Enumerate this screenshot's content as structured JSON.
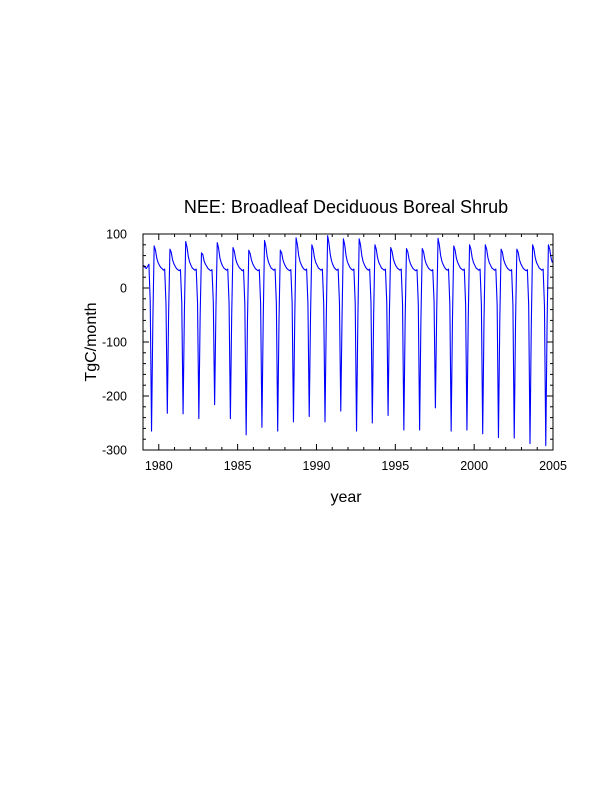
{
  "chart_data": {
    "type": "line",
    "title": "NEE: Broadleaf Deciduous Boreal Shrub",
    "xlabel": "year",
    "ylabel": "TgC/month",
    "xlim": [
      1979,
      2005
    ],
    "ylim": [
      -300,
      100
    ],
    "x_ticks": [
      1980,
      1985,
      1990,
      1995,
      2000,
      2005
    ],
    "y_ticks": [
      -300,
      -200,
      -100,
      0,
      100
    ],
    "grid": false,
    "legend": "none",
    "line_color": "#0000ff",
    "series": [
      {
        "x_start": "1979-01",
        "x_step": "1 month",
        "values": [
          42,
          38,
          36,
          40,
          44,
          -25,
          -265,
          -60,
          78,
          70,
          55,
          47,
          42,
          38,
          36,
          33,
          35,
          -30,
          -232,
          -45,
          72,
          66,
          52,
          45,
          40,
          36,
          34,
          32,
          34,
          -28,
          -233,
          -45,
          86,
          76,
          58,
          48,
          42,
          37,
          35,
          33,
          35,
          -28,
          -242,
          -50,
          65,
          62,
          50,
          44,
          40,
          36,
          34,
          32,
          34,
          -26,
          -216,
          -40,
          84,
          74,
          56,
          47,
          41,
          37,
          35,
          33,
          35,
          -28,
          -242,
          -50,
          75,
          68,
          54,
          46,
          41,
          37,
          35,
          32,
          34,
          -30,
          -272,
          -60,
          70,
          64,
          52,
          45,
          40,
          36,
          34,
          32,
          34,
          -28,
          -258,
          -55,
          88,
          77,
          58,
          48,
          42,
          37,
          35,
          33,
          35,
          -30,
          -265,
          -58,
          70,
          65,
          52,
          45,
          40,
          36,
          34,
          32,
          34,
          -28,
          -248,
          -52,
          93,
          80,
          60,
          49,
          43,
          38,
          35,
          33,
          35,
          -28,
          -238,
          -50,
          80,
          72,
          56,
          47,
          42,
          37,
          35,
          33,
          35,
          -28,
          -248,
          -52,
          97,
          83,
          62,
          50,
          43,
          38,
          35,
          33,
          35,
          -27,
          -228,
          -48,
          91,
          80,
          60,
          49,
          43,
          38,
          35,
          33,
          35,
          -30,
          -265,
          -58,
          91,
          80,
          60,
          49,
          43,
          38,
          35,
          33,
          35,
          -28,
          -250,
          -52,
          80,
          72,
          56,
          47,
          42,
          37,
          35,
          33,
          35,
          -27,
          -236,
          -48,
          75,
          68,
          54,
          46,
          41,
          37,
          35,
          33,
          35,
          -30,
          -263,
          -57,
          73,
          67,
          53,
          45,
          40,
          36,
          34,
          32,
          34,
          -30,
          -263,
          -57,
          73,
          67,
          53,
          45,
          40,
          36,
          34,
          32,
          34,
          -25,
          -222,
          -45,
          92,
          80,
          60,
          49,
          43,
          38,
          35,
          33,
          35,
          -30,
          -265,
          -58,
          78,
          70,
          55,
          47,
          42,
          37,
          35,
          33,
          35,
          -30,
          -263,
          -57,
          80,
          72,
          56,
          47,
          42,
          37,
          35,
          33,
          35,
          -30,
          -270,
          -60,
          80,
          72,
          56,
          47,
          42,
          37,
          35,
          33,
          35,
          -31,
          -277,
          -62,
          72,
          66,
          52,
          45,
          40,
          36,
          34,
          32,
          34,
          -31,
          -278,
          -62,
          72,
          66,
          52,
          45,
          40,
          36,
          34,
          32,
          34,
          -32,
          -288,
          -65,
          80,
          72,
          56,
          47,
          42,
          37,
          35,
          33,
          35,
          -33,
          -292,
          -66,
          80,
          72,
          56,
          47
        ]
      }
    ]
  }
}
